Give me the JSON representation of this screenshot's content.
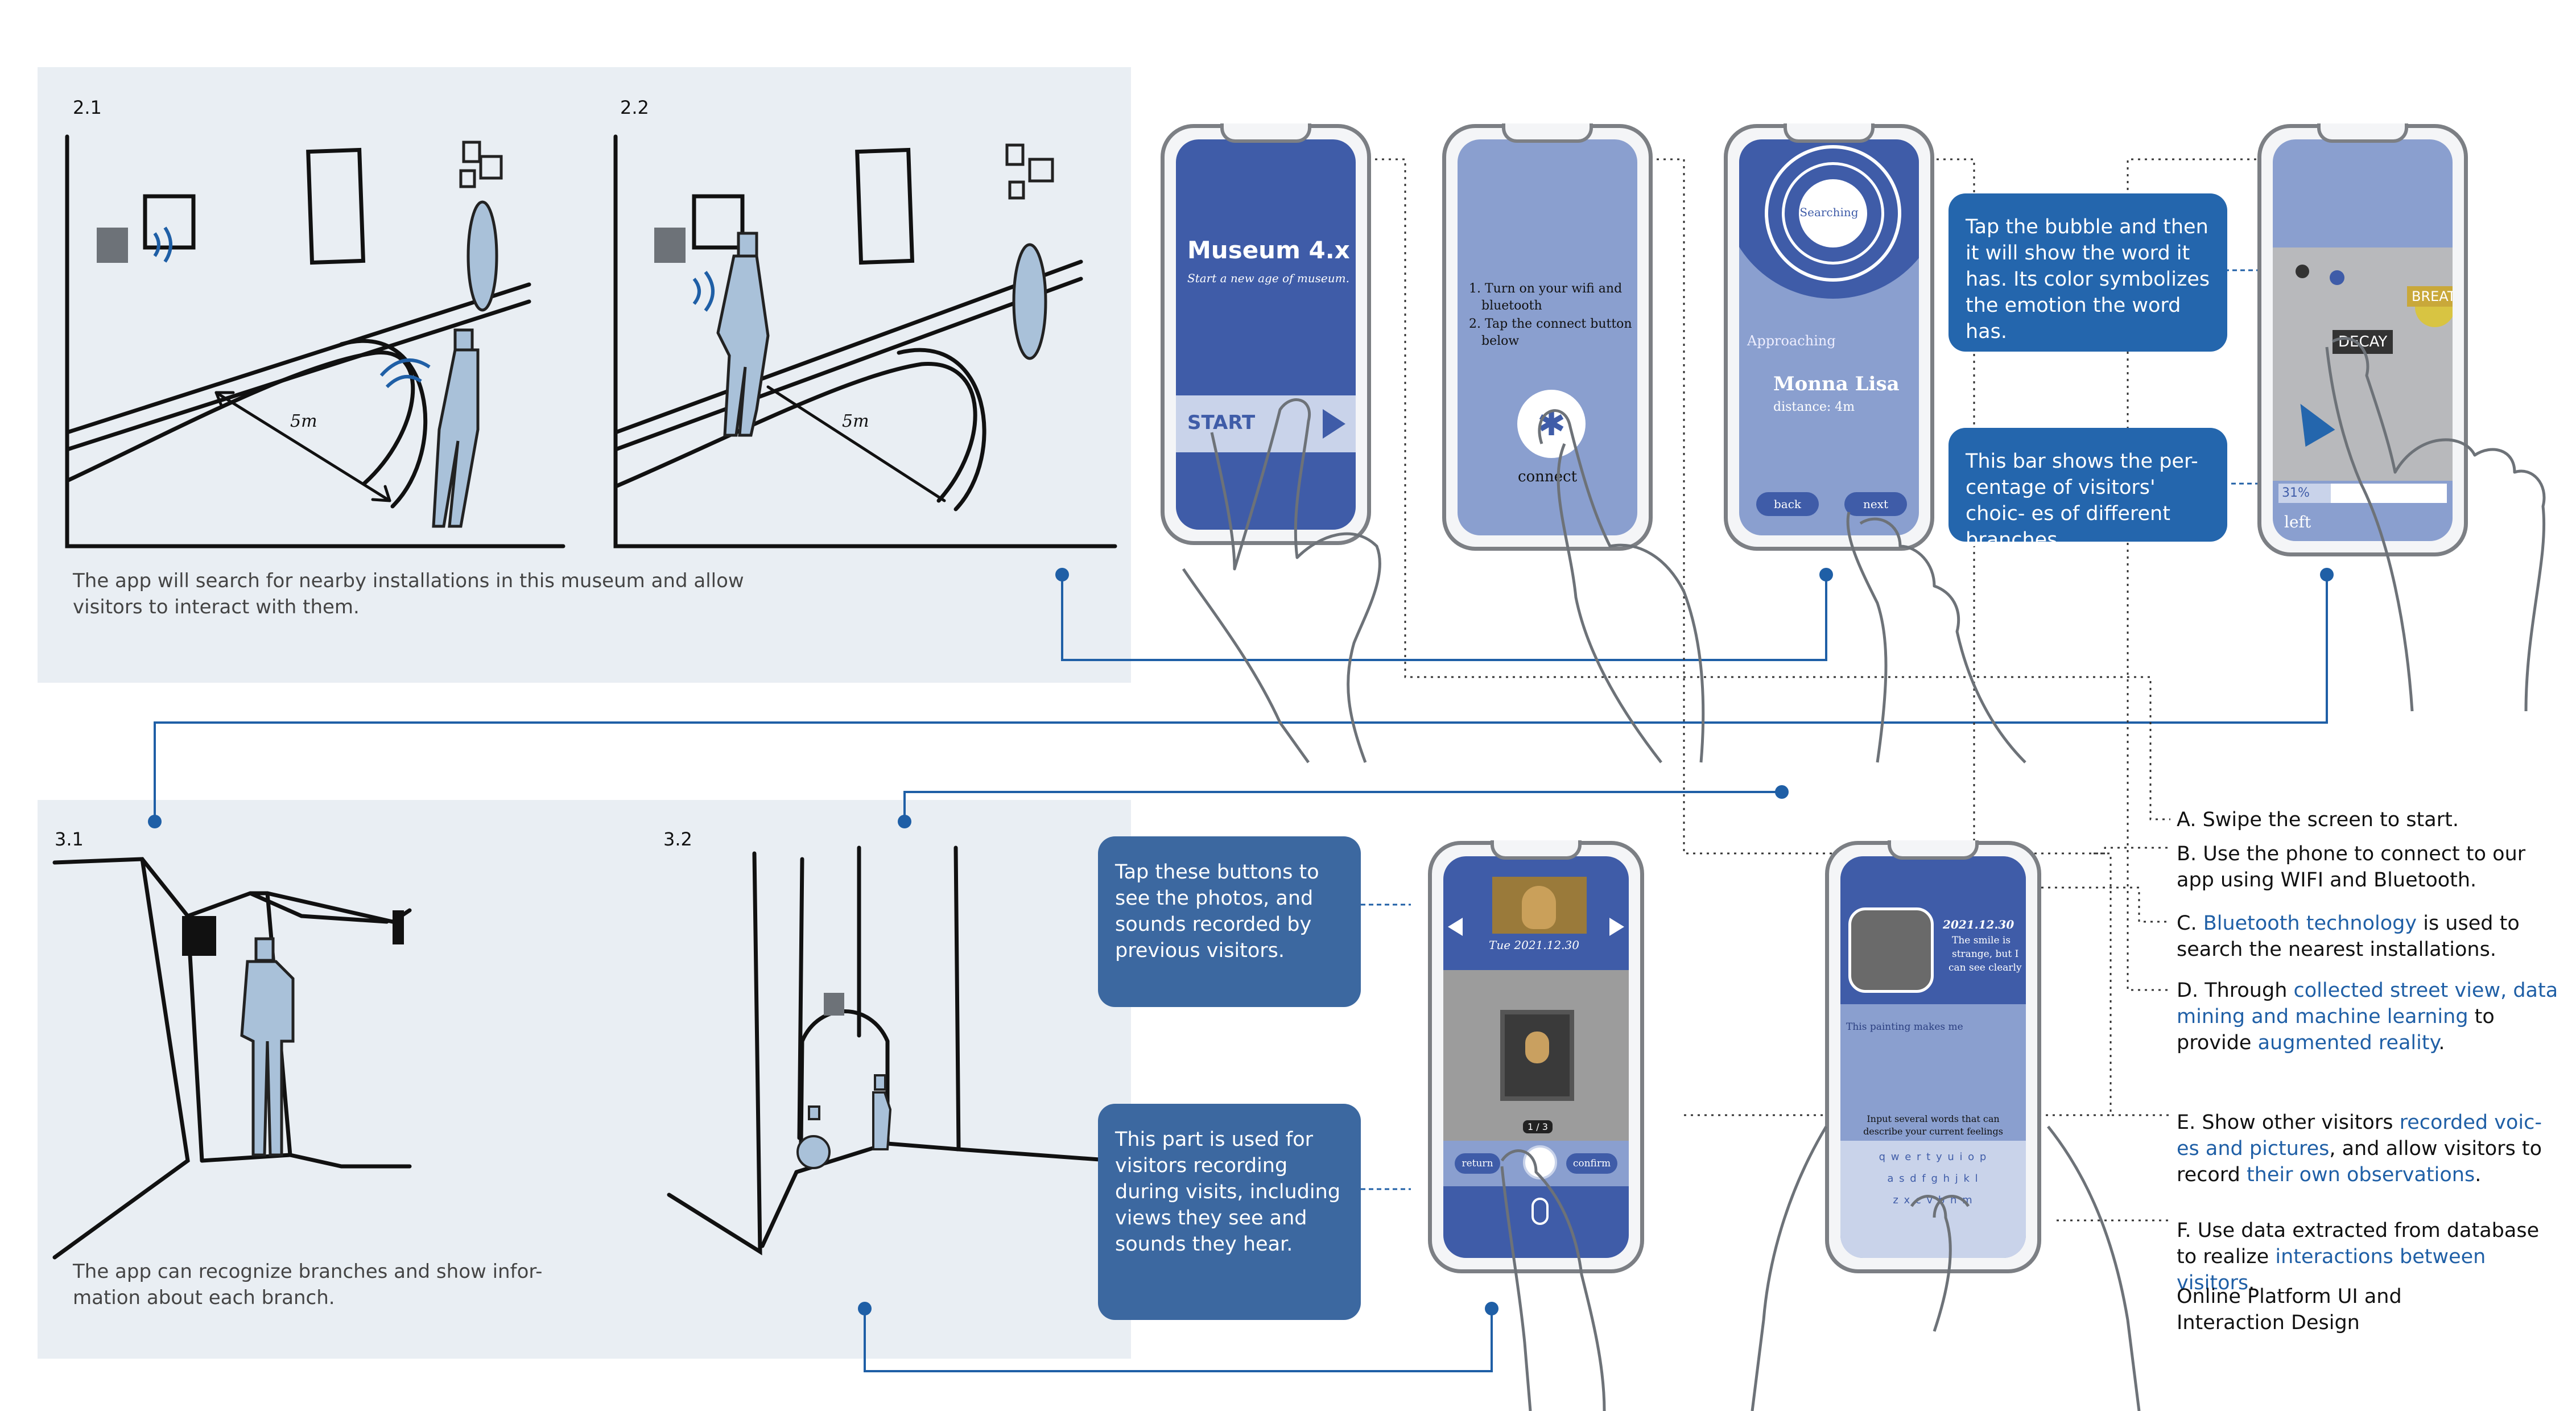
{
  "sketches": {
    "s21": "2.1",
    "s22": "2.2",
    "s31": "3.1",
    "s32": "3.2",
    "dist_label": "5m",
    "caption_top_1": "The app will search for nearby installations in this museum and allow",
    "caption_top_2": "visitors to interact with them.",
    "caption_bottom_1": "The app can recognize branches and show infor-",
    "caption_bottom_2": "mation about  each branch."
  },
  "phone1": {
    "title": "Museum 4.x",
    "subtitle": "Start a new age of museum.",
    "start_label": "START"
  },
  "phone2": {
    "step1": "1. Turn on your wifi and",
    "step1b": "bluetooth",
    "step2": "2. Tap the connect button",
    "step2b": "below",
    "connect_label": "connect"
  },
  "phone3": {
    "searching": "Searching",
    "approaching": "Approaching",
    "artwork": "Monna Lisa",
    "distance": "distance: 4m",
    "back_label": "back",
    "next_label": "next"
  },
  "phone4": {
    "word_decay": "DECAY",
    "word_breath": "BREATH",
    "percent": "31%",
    "branch_label": "left"
  },
  "phone5": {
    "date": "Tue  2021.12.30",
    "record_label": "return",
    "confirm_label": "confirm",
    "counter": "1 / 3"
  },
  "phone6": {
    "post_date": "2021.12.30",
    "post_text_1": "The smile is",
    "post_text_2": "strange, but I",
    "post_text_3": "can see clearly",
    "input_text": "This painting makes me",
    "hint_1": "Input several words that can",
    "hint_2": "describe your current feelings",
    "kb_row1": "q w e r t y u i o p",
    "kb_row2": "a s d f g h j k l",
    "kb_row3": "z x c v b n m"
  },
  "tips": {
    "bubble_tip": "Tap the bubble and then it will show the word it has. Its color symbolizes the emotion the word has.",
    "bar_tip": "This bar shows the per- centage of visitors' choic- es of different branches.",
    "buttons_tip": "Tap these buttons to see the photos, and sounds recorded by previous visitors.",
    "record_tip": "This part is used for visitors recording during visits, including views they see and sounds they hear."
  },
  "notes": {
    "a": "A. Swipe the screen to start.",
    "b": "B. Use the phone to connect to our app using WIFI and Bluetooth.",
    "c_pre": "C. ",
    "c_hl": "Bluetooth technology",
    "c_post": " is used to search the nearest installations.",
    "d_pre": "D. Through ",
    "d_hl1": "collected street view, data mining and machine learning",
    "d_mid": " to provide ",
    "d_hl2": "augmented reality",
    "d_post": ".",
    "e_pre": "E. Show other visitors ",
    "e_hl1": "recorded voic- es and pictures",
    "e_mid": ", and allow visitors to record ",
    "e_hl2": "their own observations",
    "e_post": ".",
    "f_pre": "F. Use data extracted from database to realize ",
    "f_hl": "interactions between visitors",
    "f_post": ".",
    "footer_1": "Online Platform UI and",
    "footer_2": "Interaction Design"
  },
  "colors": {
    "panel_bg": "#e9eef3",
    "screen_blue": "#8a9fcf",
    "deep_blue": "#3f5ca8",
    "bubble_blue": "#2466ad",
    "line_blue": "#1f5fa6",
    "figure_blue": "#a9c1d9"
  }
}
